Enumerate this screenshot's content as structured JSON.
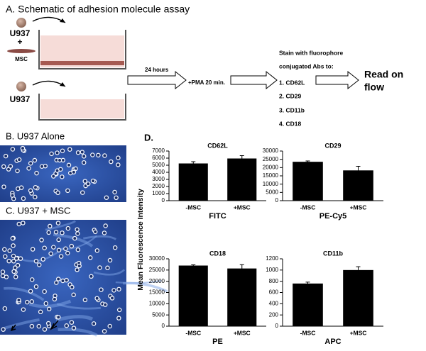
{
  "figure_a": {
    "title": "A. Schematic of adhesion molecule assay",
    "cell_top": "U937",
    "plus": "+",
    "msc": "MSC",
    "cell_bottom": "U937",
    "step1": "24 hours",
    "step2": "+PMA 20 min.",
    "stain": [
      "Stain with fluorophore",
      "conjugated Abs to:"
    ],
    "markers": [
      "1. CD62L",
      "2. CD29",
      "3. CD11b",
      "4. CD18"
    ],
    "read": [
      "Read on",
      "flow"
    ]
  },
  "panel_b": {
    "title": "B. U937 Alone"
  },
  "panel_c": {
    "title": "C. U937 + MSC"
  },
  "panel_d": {
    "label": "D.",
    "y_label": "Mean Fluorescence Intensity"
  },
  "chart_data": [
    {
      "type": "bar",
      "title": "CD62L",
      "x_label": "FITC",
      "categories": [
        "-MSC",
        "+MSC"
      ],
      "values": [
        5250,
        5950
      ],
      "errors": [
        250,
        400
      ],
      "color": "#000000",
      "ylim": [
        0,
        7000
      ],
      "yticks": [
        0,
        1000,
        2000,
        3000,
        4000,
        5000,
        6000,
        7000
      ]
    },
    {
      "type": "bar",
      "title": "CD29",
      "x_label": "PE-Cy5",
      "categories": [
        "-MSC",
        "+MSC"
      ],
      "values": [
        23500,
        18300
      ],
      "errors": [
        500,
        2500
      ],
      "color": "#000000",
      "ylim": [
        0,
        30000
      ],
      "yticks": [
        0,
        5000,
        10000,
        15000,
        20000,
        25000,
        30000
      ]
    },
    {
      "type": "bar",
      "title": "CD18",
      "x_label": "PE",
      "categories": [
        "-MSC",
        "+MSC"
      ],
      "values": [
        27000,
        25700
      ],
      "errors": [
        300,
        1700
      ],
      "color": "#000000",
      "ylim": [
        0,
        30000
      ],
      "yticks": [
        0,
        5000,
        10000,
        15000,
        20000,
        25000,
        30000
      ]
    },
    {
      "type": "bar",
      "title": "CD11b",
      "x_label": "APC",
      "categories": [
        "-MSC",
        "+MSC"
      ],
      "values": [
        760,
        1000
      ],
      "errors": [
        25,
        60
      ],
      "color": "#000000",
      "ylim": [
        0,
        1200
      ],
      "yticks": [
        0,
        200,
        400,
        600,
        800,
        1000,
        1200
      ]
    }
  ]
}
